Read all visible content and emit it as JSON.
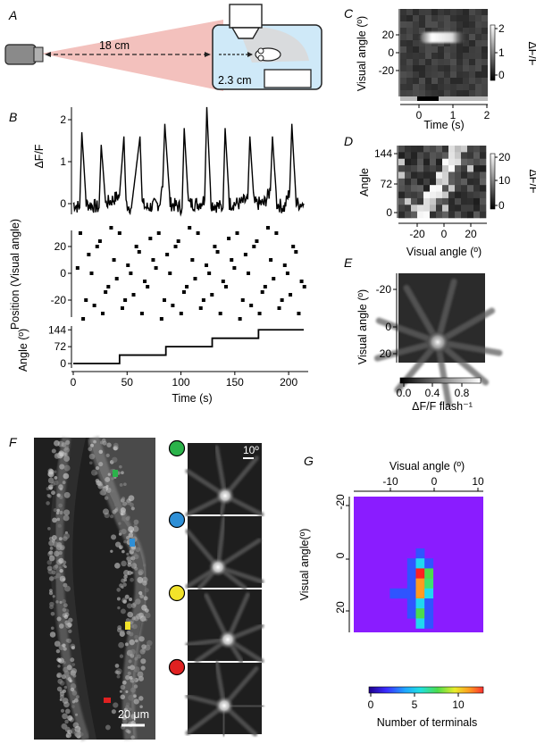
{
  "panels": {
    "A": {
      "letter": "A",
      "distance_label": "18 cm",
      "near_label": "2.3 cm"
    },
    "B": {
      "letter": "B"
    },
    "C": {
      "letter": "C"
    },
    "D": {
      "letter": "D"
    },
    "E": {
      "letter": "E"
    },
    "F": {
      "letter": "F",
      "scale_angle": "10º",
      "scale_bar": "20 μm",
      "marker_colors": [
        "#2bb34a",
        "#2e8fd6",
        "#f2e32a",
        "#e02121"
      ]
    },
    "G": {
      "letter": "G"
    }
  },
  "colors": {
    "red_cone": "#f3c1bd",
    "tank": "#cfe9f8",
    "trace": "#000000"
  },
  "chart_data": [
    {
      "id": "B-trace",
      "type": "line",
      "ylabel": "ΔF/F",
      "ylim": [
        -0.3,
        2.3
      ],
      "yticks": [
        "0",
        "1",
        "2"
      ],
      "x": [
        0,
        6,
        8,
        12,
        24,
        26,
        30,
        37,
        43,
        47,
        49,
        54,
        62,
        64,
        68,
        80,
        83,
        85,
        90,
        101,
        103,
        107,
        117,
        122,
        124,
        128,
        139,
        141,
        145,
        155,
        162,
        164,
        168,
        177,
        183,
        185,
        189,
        196,
        201,
        203,
        207,
        214
      ],
      "y": [
        0,
        -0.1,
        1.7,
        0,
        -0.1,
        1.4,
        0,
        0.1,
        0.2,
        1.6,
        0,
        -0.1,
        1.6,
        0,
        -0.1,
        0,
        0.4,
        1.9,
        0,
        -0.1,
        1.8,
        0,
        0,
        0.1,
        2.3,
        0,
        -0.1,
        1.8,
        0,
        0,
        0.1,
        1.6,
        0,
        0,
        0.3,
        1.6,
        0,
        -0.1,
        0.3,
        1.9,
        0,
        0
      ]
    },
    {
      "id": "B-position",
      "type": "scatter",
      "ylabel": "Position (Visual angle)",
      "ylim": [
        -32,
        32
      ],
      "yticks": [
        "20",
        "0",
        "-20"
      ]
    },
    {
      "id": "B-angle",
      "type": "line",
      "ylabel": "Angle (º)",
      "xlabel": "Time (s)",
      "yticks": [
        "144",
        "72",
        "0"
      ],
      "xticks": [
        "0",
        "50",
        "100",
        "150",
        "200"
      ],
      "steps": [
        {
          "t": 0,
          "a": 0
        },
        {
          "t": 43,
          "a": 36
        },
        {
          "t": 86,
          "a": 72
        },
        {
          "t": 129,
          "a": 108
        },
        {
          "t": 172,
          "a": 144
        },
        {
          "t": 214,
          "a": 144
        }
      ]
    },
    {
      "id": "C",
      "type": "heatmap",
      "ylabel": "Visual angle (º)",
      "xlabel": "Time (s)",
      "yticks": [
        "20",
        "0",
        "-20"
      ],
      "xticks": [
        "0",
        "1",
        "2"
      ],
      "colorbar": {
        "label": "ΔF/F",
        "ticks": [
          "2",
          "1",
          "0"
        ]
      }
    },
    {
      "id": "D",
      "type": "heatmap",
      "ylabel": "Angle",
      "xlabel": "Visual angle (º)",
      "yticks": [
        "144",
        "72",
        "0"
      ],
      "xticks": [
        "-20",
        "0",
        "20"
      ],
      "colorbar": {
        "label": "ΔF/F",
        "ticks": [
          "20",
          "10",
          "0"
        ]
      }
    },
    {
      "id": "E",
      "type": "heatmap",
      "ylabel": "Visual angle (º)",
      "yticks": [
        "-20",
        "0",
        "20"
      ],
      "colorbar": {
        "label": "ΔF/F flash⁻¹",
        "ticks": [
          "0.0",
          "0.4",
          "0.8"
        ]
      }
    },
    {
      "id": "G",
      "type": "heatmap",
      "xlabel": "Visual angle (º)",
      "ylabel": "Visual angle(º)",
      "xticks": [
        "-10",
        "0",
        "10"
      ],
      "yticks": [
        "-20",
        "0",
        "20"
      ],
      "colorbar": {
        "label": "Number of terminals",
        "ticks": [
          "0",
          "5",
          "10"
        ]
      },
      "cells": [
        {
          "col": 5,
          "row": 0,
          "v": 1
        },
        {
          "col": 4,
          "row": 1,
          "v": 1
        },
        {
          "col": 5,
          "row": 1,
          "v": 5
        },
        {
          "col": 6,
          "row": 1,
          "v": 1
        },
        {
          "col": 4,
          "row": 2,
          "v": 1
        },
        {
          "col": 5,
          "row": 2,
          "v": 13
        },
        {
          "col": 6,
          "row": 2,
          "v": 8
        },
        {
          "col": 4,
          "row": 3,
          "v": 2
        },
        {
          "col": 5,
          "row": 3,
          "v": 11
        },
        {
          "col": 6,
          "row": 3,
          "v": 7
        },
        {
          "col": 2,
          "row": 4,
          "v": 1
        },
        {
          "col": 3,
          "row": 4,
          "v": 1
        },
        {
          "col": 4,
          "row": 4,
          "v": 1
        },
        {
          "col": 5,
          "row": 4,
          "v": 12
        },
        {
          "col": 6,
          "row": 4,
          "v": 6
        },
        {
          "col": 4,
          "row": 5,
          "v": 1
        },
        {
          "col": 5,
          "row": 5,
          "v": 6
        },
        {
          "col": 6,
          "row": 5,
          "v": 4
        },
        {
          "col": 4,
          "row": 6,
          "v": 1
        },
        {
          "col": 5,
          "row": 6,
          "v": 8
        },
        {
          "col": 6,
          "row": 6,
          "v": 2
        },
        {
          "col": 5,
          "row": 7,
          "v": 5
        },
        {
          "col": 6,
          "row": 7,
          "v": 1
        }
      ]
    }
  ]
}
